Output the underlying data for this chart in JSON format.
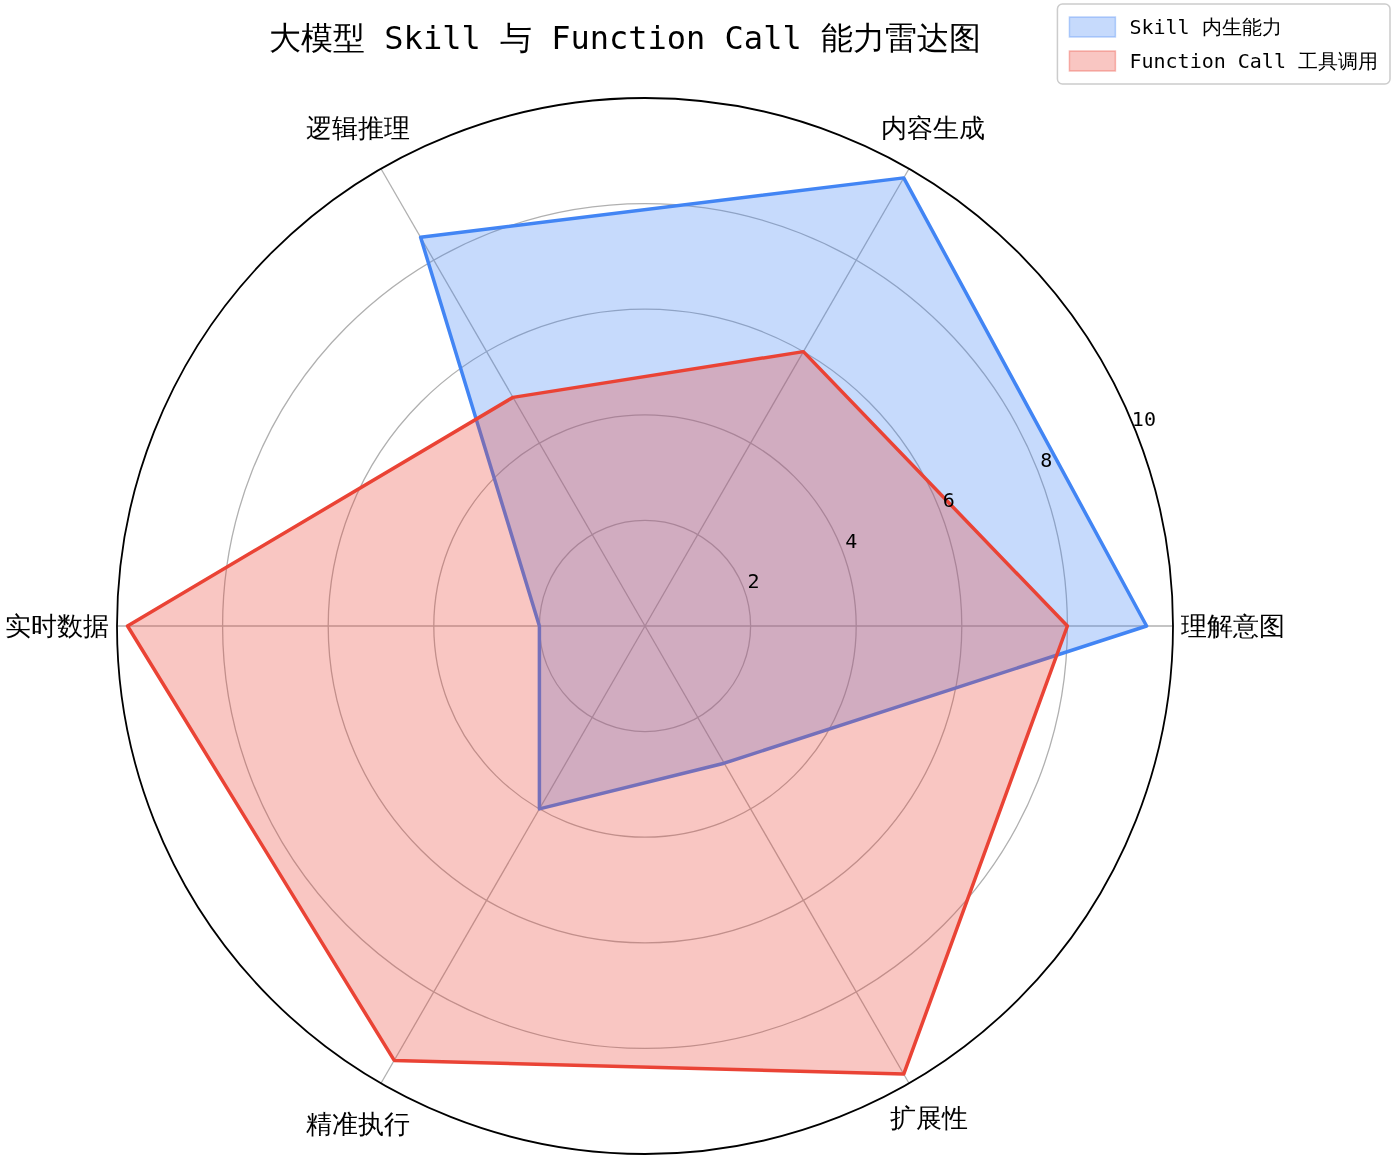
{
  "chart_data": {
    "type": "radar",
    "title": "大模型 Skill 与 Function Call 能力雷达图",
    "categories": [
      "内容生成",
      "理解意图",
      "扩展性",
      "精准执行",
      "实时数据",
      "逻辑推理"
    ],
    "series": [
      {
        "name": "Skill 内生能力",
        "color": "#4285f4",
        "values": [
          9.8,
          9.5,
          3,
          4,
          2,
          8.5
        ]
      },
      {
        "name": "Function Call 工具调用",
        "color": "#ea4335",
        "values": [
          6,
          8,
          9.8,
          9.5,
          9.8,
          5
        ]
      }
    ],
    "ylim": [
      0,
      10
    ],
    "yticks": [
      2,
      4,
      6,
      8,
      10
    ],
    "grid": true,
    "legend": "top right"
  }
}
